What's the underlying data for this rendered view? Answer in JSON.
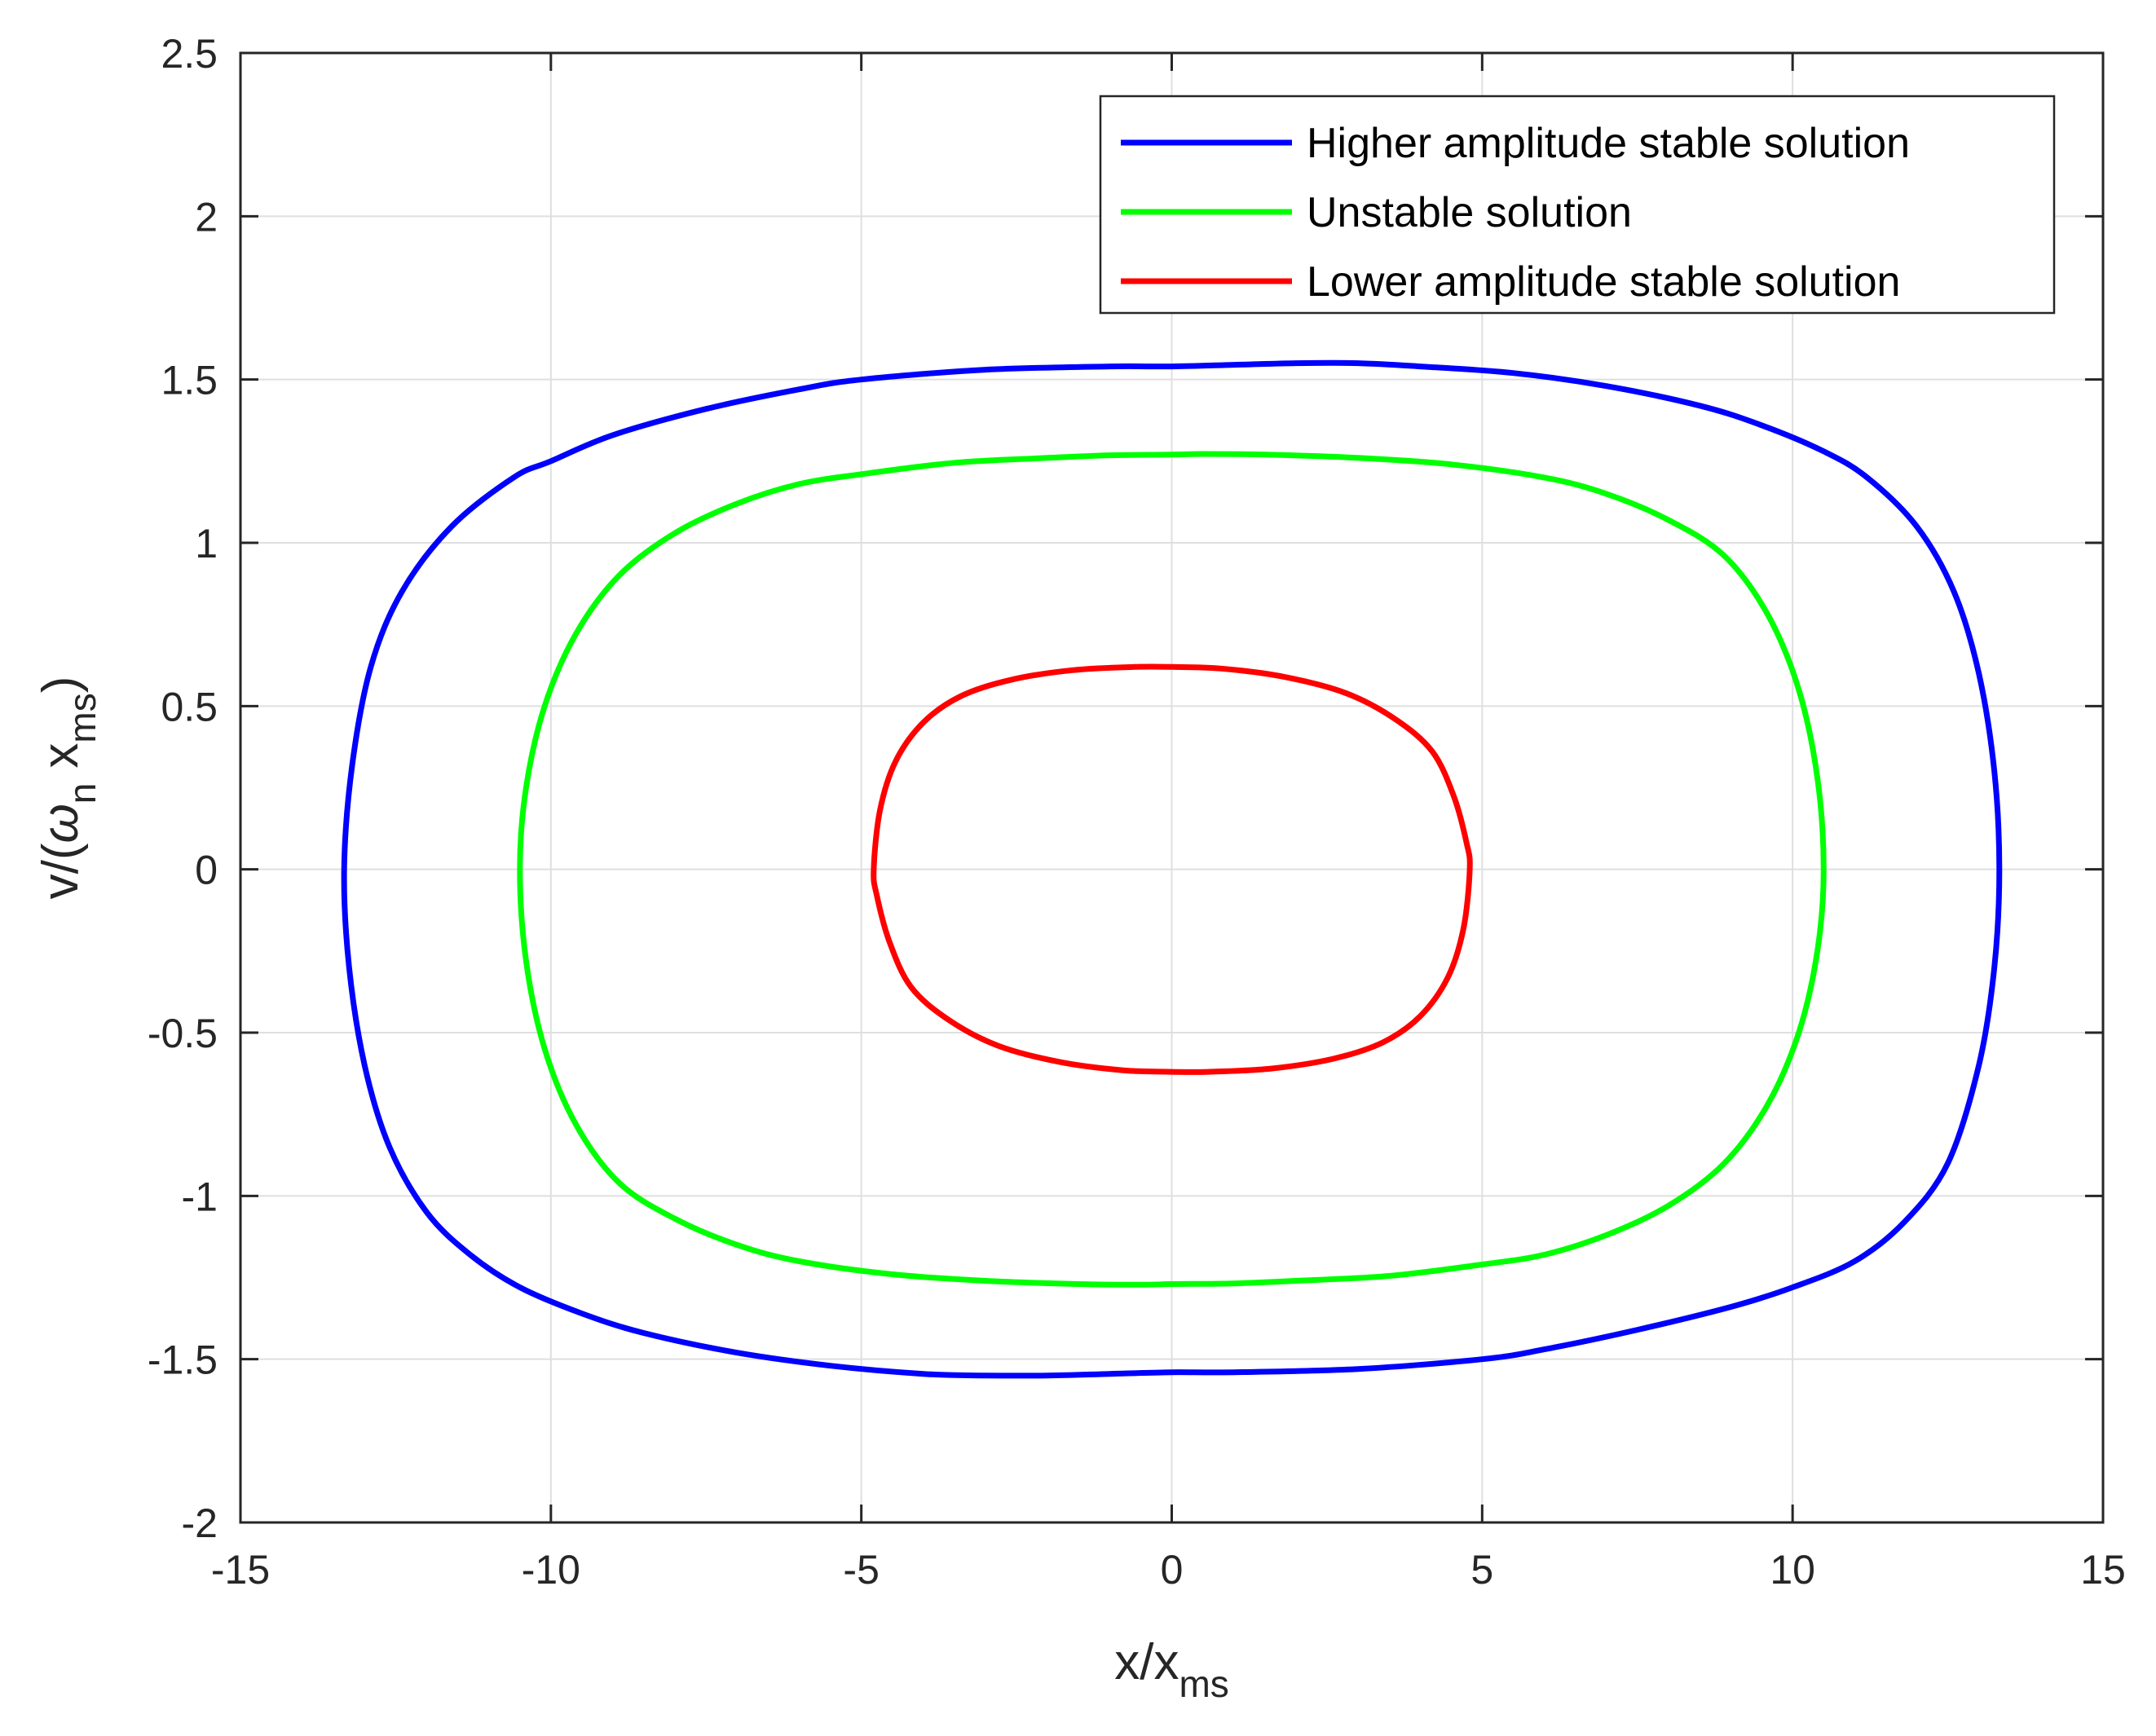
{
  "chart_data": {
    "type": "line",
    "title": "",
    "xlabel": "x/x",
    "xlabel_sub": "ms",
    "ylabel_prefix": "v/(",
    "ylabel_omega": "ω",
    "ylabel_omega_sub": "n",
    "ylabel_x": "x",
    "ylabel_x_sub": "ms",
    "ylabel_suffix": ")",
    "xlim": [
      -15,
      15
    ],
    "ylim": [
      -2,
      2.5
    ],
    "xticks": [
      -15,
      -10,
      -5,
      0,
      5,
      10,
      15
    ],
    "yticks": [
      -2,
      -1.5,
      -1,
      -0.5,
      0,
      0.5,
      1,
      1.5,
      2,
      2.5
    ],
    "xtick_labels": [
      "-15",
      "-10",
      "-5",
      "0",
      "5",
      "10",
      "15"
    ],
    "ytick_labels": [
      "-2",
      "-1.5",
      "-1",
      "-0.5",
      "0",
      "0.5",
      "1",
      "1.5",
      "2",
      "2.5"
    ],
    "grid": true,
    "legend_position": "top-right",
    "series": [
      {
        "name": "Higher amplitude stable solution",
        "color": "#0000ff",
        "points": [
          [
            -13.33,
            0
          ],
          [
            -13.2,
            0.32
          ],
          [
            -12.9,
            0.62
          ],
          [
            -12.4,
            0.85
          ],
          [
            -11.6,
            1.05
          ],
          [
            -10.6,
            1.2
          ],
          [
            -10,
            1.25
          ],
          [
            -9,
            1.33
          ],
          [
            -7.5,
            1.41
          ],
          [
            -6,
            1.47
          ],
          [
            -5,
            1.5
          ],
          [
            -3,
            1.53
          ],
          [
            -1,
            1.54
          ],
          [
            0,
            1.54
          ],
          [
            1,
            1.545
          ],
          [
            2,
            1.55
          ],
          [
            3,
            1.55
          ],
          [
            4,
            1.54
          ],
          [
            5.5,
            1.52
          ],
          [
            7,
            1.48
          ],
          [
            8.5,
            1.42
          ],
          [
            9.5,
            1.36
          ],
          [
            10.5,
            1.28
          ],
          [
            11.2,
            1.2
          ],
          [
            12,
            1.05
          ],
          [
            12.6,
            0.85
          ],
          [
            13.0,
            0.6
          ],
          [
            13.25,
            0.3
          ],
          [
            13.33,
            0
          ],
          [
            13.25,
            -0.3
          ],
          [
            13.0,
            -0.6
          ],
          [
            12.5,
            -0.9
          ],
          [
            11.8,
            -1.08
          ],
          [
            11,
            -1.2
          ],
          [
            10,
            -1.28
          ],
          [
            9,
            -1.34
          ],
          [
            7.5,
            -1.41
          ],
          [
            6,
            -1.47
          ],
          [
            5,
            -1.5
          ],
          [
            3,
            -1.53
          ],
          [
            1,
            -1.54
          ],
          [
            0,
            -1.54
          ],
          [
            -1,
            -1.545
          ],
          [
            -2,
            -1.55
          ],
          [
            -3,
            -1.55
          ],
          [
            -4,
            -1.545
          ],
          [
            -5.5,
            -1.52
          ],
          [
            -7,
            -1.48
          ],
          [
            -8.5,
            -1.42
          ],
          [
            -9.5,
            -1.36
          ],
          [
            -10.5,
            -1.28
          ],
          [
            -11.3,
            -1.18
          ],
          [
            -12,
            -1.05
          ],
          [
            -12.6,
            -0.85
          ],
          [
            -13.0,
            -0.6
          ],
          [
            -13.25,
            -0.3
          ],
          [
            -13.33,
            0
          ]
        ]
      },
      {
        "name": "Unstable solution",
        "color": "#00ff00",
        "points": [
          [
            -10.5,
            0
          ],
          [
            -10.4,
            0.25
          ],
          [
            -10.1,
            0.5
          ],
          [
            -9.6,
            0.72
          ],
          [
            -8.9,
            0.9
          ],
          [
            -8,
            1.03
          ],
          [
            -7,
            1.12
          ],
          [
            -6,
            1.18
          ],
          [
            -5,
            1.21
          ],
          [
            -3.5,
            1.245
          ],
          [
            -2,
            1.26
          ],
          [
            -1,
            1.268
          ],
          [
            0,
            1.27
          ],
          [
            0.5,
            1.272
          ],
          [
            1.5,
            1.27
          ],
          [
            3,
            1.26
          ],
          [
            4.5,
            1.24
          ],
          [
            6,
            1.2
          ],
          [
            7,
            1.15
          ],
          [
            8,
            1.07
          ],
          [
            8.9,
            0.96
          ],
          [
            9.6,
            0.78
          ],
          [
            10.1,
            0.55
          ],
          [
            10.4,
            0.28
          ],
          [
            10.5,
            0
          ],
          [
            10.4,
            -0.25
          ],
          [
            10.1,
            -0.5
          ],
          [
            9.6,
            -0.72
          ],
          [
            8.9,
            -0.9
          ],
          [
            8,
            -1.03
          ],
          [
            7,
            -1.12
          ],
          [
            6,
            -1.18
          ],
          [
            5,
            -1.21
          ],
          [
            3.5,
            -1.245
          ],
          [
            2,
            -1.26
          ],
          [
            1,
            -1.268
          ],
          [
            0,
            -1.27
          ],
          [
            -0.5,
            -1.272
          ],
          [
            -1.5,
            -1.27
          ],
          [
            -3,
            -1.26
          ],
          [
            -4.5,
            -1.24
          ],
          [
            -6,
            -1.2
          ],
          [
            -7,
            -1.15
          ],
          [
            -8,
            -1.07
          ],
          [
            -8.9,
            -0.96
          ],
          [
            -9.6,
            -0.78
          ],
          [
            -10.1,
            -0.55
          ],
          [
            -10.4,
            -0.28
          ],
          [
            -10.5,
            0
          ]
        ]
      },
      {
        "name": "Lower amplitude stable solution",
        "color": "#ff0000",
        "points": [
          [
            -4.8,
            0
          ],
          [
            -4.7,
            0.18
          ],
          [
            -4.45,
            0.33
          ],
          [
            -4.0,
            0.45
          ],
          [
            -3.4,
            0.53
          ],
          [
            -2.6,
            0.58
          ],
          [
            -1.6,
            0.61
          ],
          [
            -0.6,
            0.62
          ],
          [
            0,
            0.62
          ],
          [
            0.8,
            0.615
          ],
          [
            1.8,
            0.59
          ],
          [
            2.8,
            0.54
          ],
          [
            3.6,
            0.46
          ],
          [
            4.2,
            0.36
          ],
          [
            4.55,
            0.22
          ],
          [
            4.75,
            0.08
          ],
          [
            4.8,
            0
          ],
          [
            4.7,
            -0.18
          ],
          [
            4.45,
            -0.33
          ],
          [
            4.0,
            -0.45
          ],
          [
            3.4,
            -0.53
          ],
          [
            2.6,
            -0.58
          ],
          [
            1.6,
            -0.61
          ],
          [
            0.6,
            -0.62
          ],
          [
            0,
            -0.62
          ],
          [
            -0.8,
            -0.615
          ],
          [
            -1.8,
            -0.59
          ],
          [
            -2.8,
            -0.54
          ],
          [
            -3.6,
            -0.46
          ],
          [
            -4.2,
            -0.36
          ],
          [
            -4.55,
            -0.22
          ],
          [
            -4.75,
            -0.08
          ],
          [
            -4.8,
            0
          ]
        ]
      }
    ]
  }
}
